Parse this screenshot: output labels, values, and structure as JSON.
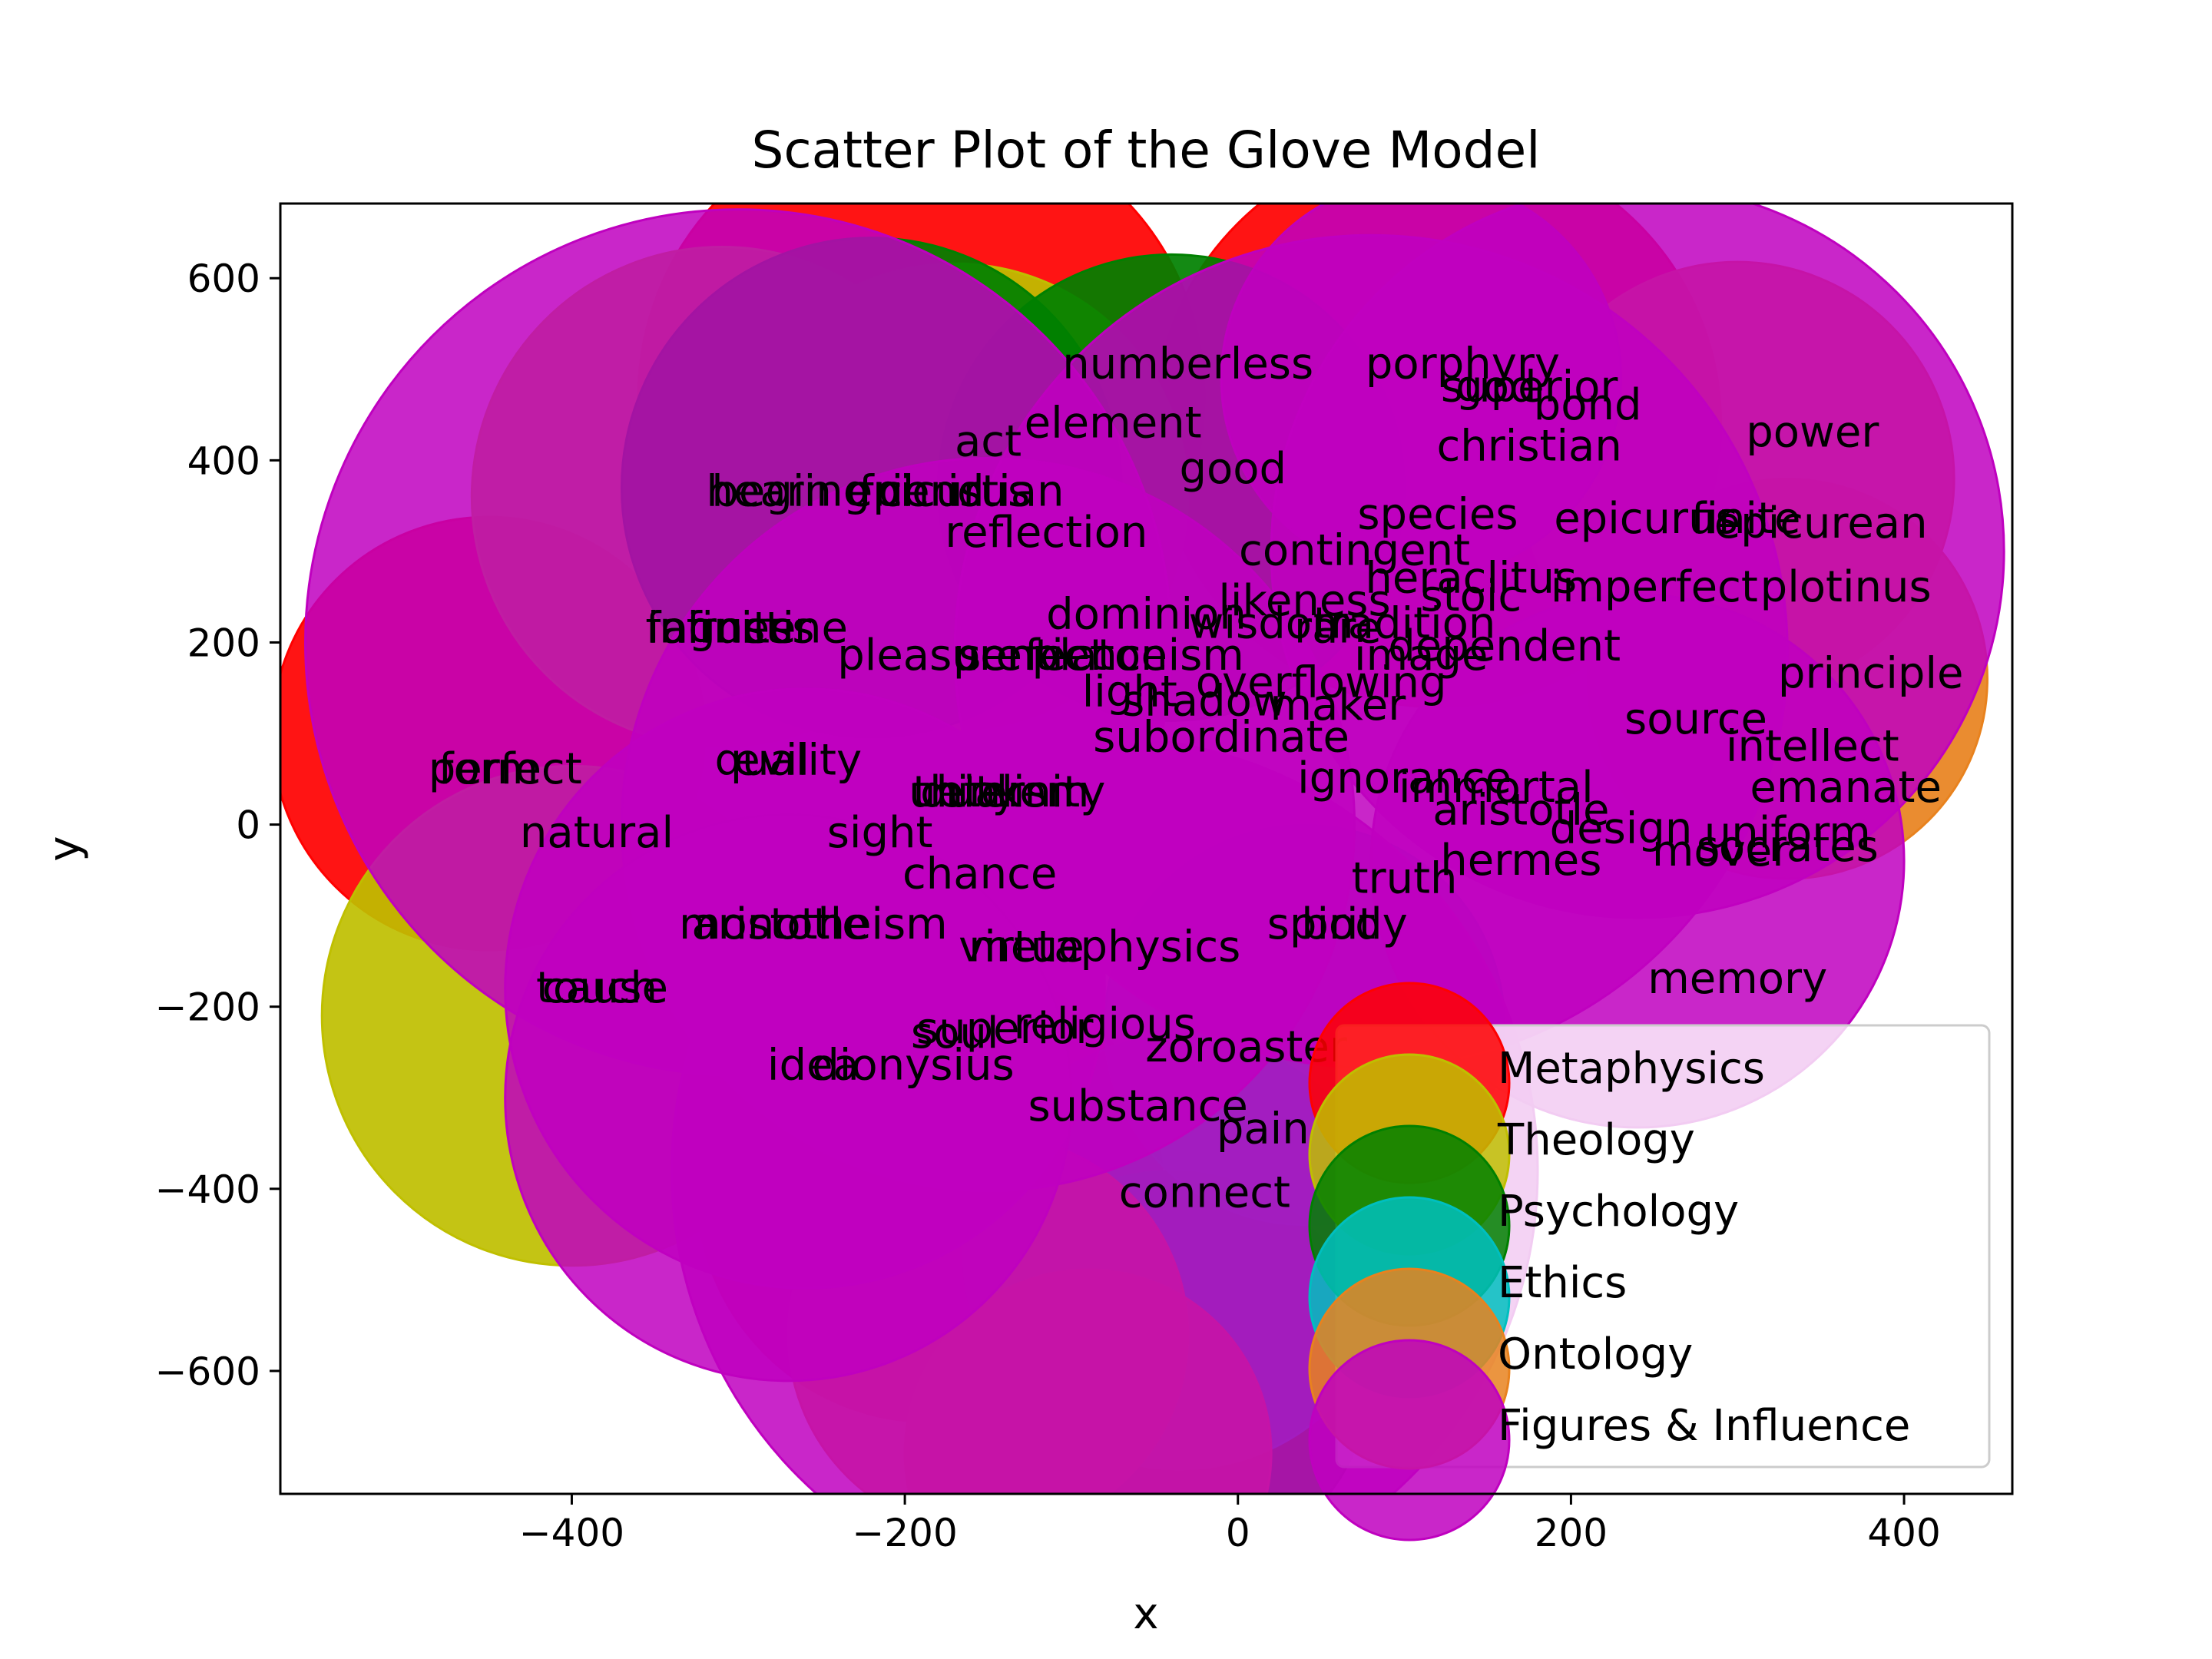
{
  "chart_data": {
    "type": "scatter",
    "title": "Scatter Plot of the Glove Model",
    "xlabel": "x",
    "ylabel": "y",
    "xlim": [
      -575,
      465
    ],
    "ylim": [
      -735,
      682
    ],
    "xticks": [
      -400,
      -200,
      0,
      200,
      400
    ],
    "xtick_labels": [
      "−400",
      "−200",
      "0",
      "200",
      "400"
    ],
    "yticks": [
      600,
      400,
      200,
      0,
      -200,
      -400,
      -600
    ],
    "ytick_labels": [
      "600",
      "400",
      "200",
      "0",
      "−200",
      "−400",
      "−600"
    ],
    "legend": {
      "placement": "lower-right"
    },
    "series": [
      {
        "name": "Metaphysics",
        "color": "#ff0000",
        "bubbles": [
          [
            -190,
            470,
            170
          ],
          [
            120,
            440,
            170
          ],
          [
            -450,
            100,
            130
          ],
          [
            -185,
            -400,
            140
          ]
        ]
      },
      {
        "name": "Theology",
        "color": "#bfbf00",
        "bubbles": [
          [
            -310,
            360,
            150
          ],
          [
            -400,
            -210,
            150
          ],
          [
            -170,
            360,
            140
          ]
        ]
      },
      {
        "name": "Psychology",
        "color": "#008000",
        "bubbles": [
          [
            -220,
            370,
            150
          ],
          [
            -40,
            370,
            140
          ],
          [
            -40,
            -600,
            120
          ]
        ]
      },
      {
        "name": "Ethics",
        "color": "#00bfbf",
        "bubbles": [
          [
            -35,
            -470,
            130
          ],
          [
            40,
            -220,
            120
          ]
        ]
      },
      {
        "name": "Ontology",
        "color": "#e8821e",
        "bubbles": [
          [
            300,
            380,
            130
          ],
          [
            330,
            160,
            120
          ],
          [
            -150,
            -560,
            120
          ],
          [
            -90,
            -690,
            110
          ]
        ]
      },
      {
        "name": "Figures & Influence",
        "color": "#bf00bf",
        "bubbles": [
          [
            -300,
            200,
            260
          ],
          [
            -80,
            -380,
            260
          ],
          [
            80,
            190,
            250
          ],
          [
            240,
            300,
            220
          ],
          [
            -260,
            -180,
            180
          ],
          [
            -150,
            0,
            220
          ],
          [
            240,
            -40,
            160
          ],
          [
            -270,
            -300,
            170
          ],
          [
            110,
            490,
            120
          ]
        ]
      }
    ],
    "words": [
      [
        "numberless",
        -30,
        490
      ],
      [
        "porphyry",
        135,
        490
      ],
      [
        "god",
        155,
        465
      ],
      [
        "superior",
        175,
        465
      ],
      [
        "bond",
        210,
        445
      ],
      [
        "power",
        345,
        415
      ],
      [
        "element",
        -75,
        425
      ],
      [
        "act",
        -150,
        405
      ],
      [
        "christian",
        175,
        400
      ],
      [
        "hearing",
        -270,
        350
      ],
      [
        "begin",
        -280,
        350
      ],
      [
        "friend",
        -190,
        350
      ],
      [
        "epicurus",
        -180,
        350
      ],
      [
        "christian",
        -160,
        350
      ],
      [
        "good",
        -3,
        375
      ],
      [
        "species",
        120,
        325
      ],
      [
        "epicurus",
        245,
        320
      ],
      [
        "finite",
        305,
        320
      ],
      [
        "epicurean",
        350,
        315
      ],
      [
        "reflection",
        -115,
        305
      ],
      [
        "contingent",
        70,
        285
      ],
      [
        "heraclitus",
        140,
        255
      ],
      [
        "imperfect",
        250,
        245
      ],
      [
        "plotinus",
        365,
        245
      ],
      [
        "stoic",
        140,
        235
      ],
      [
        "likeness",
        40,
        230
      ],
      [
        "dominion",
        -55,
        215
      ],
      [
        "tradition",
        100,
        205
      ],
      [
        "wisdom",
        20,
        205
      ],
      [
        "rare",
        60,
        200
      ],
      [
        "infinite",
        -310,
        200
      ],
      [
        "fairness",
        -305,
        200
      ],
      [
        "agustine",
        -290,
        200
      ],
      [
        "dependent",
        160,
        180
      ],
      [
        "pleasure",
        -185,
        170
      ],
      [
        "perfect",
        -125,
        170
      ],
      [
        "sentience",
        -105,
        170
      ],
      [
        "platonism",
        -60,
        170
      ],
      [
        "image",
        110,
        170
      ],
      [
        "overflowing",
        50,
        140
      ],
      [
        "light",
        -65,
        130
      ],
      [
        "shadow",
        -20,
        120
      ],
      [
        "maker",
        60,
        115
      ],
      [
        "principle",
        380,
        150
      ],
      [
        "source",
        275,
        100
      ],
      [
        "subordinate",
        -10,
        80
      ],
      [
        "intellect",
        345,
        70
      ],
      [
        "perfect",
        -440,
        45
      ],
      [
        "form",
        -450,
        45
      ],
      [
        "quality",
        -270,
        55
      ],
      [
        "evil",
        -280,
        55
      ],
      [
        "ignorance",
        100,
        35
      ],
      [
        "immortal",
        155,
        25
      ],
      [
        "emanate",
        365,
        25
      ],
      [
        "unity",
        -165,
        20
      ],
      [
        "thinker",
        -150,
        20
      ],
      [
        "dualism",
        -140,
        20
      ],
      [
        "eternity",
        -130,
        20
      ],
      [
        "aristotle",
        170,
        0
      ],
      [
        "design",
        230,
        -20
      ],
      [
        "uniform",
        330,
        -25
      ],
      [
        "natural",
        -385,
        -25
      ],
      [
        "mover",
        290,
        -45
      ],
      [
        "socrates",
        330,
        -40
      ],
      [
        "sight",
        -215,
        -25
      ],
      [
        "hermes",
        170,
        -55
      ],
      [
        "chance",
        -155,
        -70
      ],
      [
        "truth",
        100,
        -75
      ],
      [
        "aristotle",
        -275,
        -125
      ],
      [
        "monotheism",
        -255,
        -125
      ],
      [
        "metaphysics",
        -80,
        -150
      ],
      [
        "virtue",
        -130,
        -150
      ],
      [
        "spirit",
        50,
        -125
      ],
      [
        "body",
        70,
        -125
      ],
      [
        "memory",
        300,
        -185
      ],
      [
        "cause",
        -380,
        -195
      ],
      [
        "touch",
        -385,
        -195
      ],
      [
        "religious",
        -80,
        -235
      ],
      [
        "superior",
        -140,
        -240
      ],
      [
        "soul",
        -170,
        -245
      ],
      [
        "zoroaster",
        5,
        -260
      ],
      [
        "dionysius",
        -195,
        -280
      ],
      [
        "idea",
        -255,
        -280
      ],
      [
        "substance",
        -60,
        -325
      ],
      [
        "pain",
        15,
        -350
      ],
      [
        "connect",
        -20,
        -420
      ]
    ]
  },
  "legend_items": [
    {
      "label": "Metaphysics",
      "color": "#ff0000"
    },
    {
      "label": "Theology",
      "color": "#bfbf00"
    },
    {
      "label": "Psychology",
      "color": "#008000"
    },
    {
      "label": "Ethics",
      "color": "#00bfbf"
    },
    {
      "label": "Ontology",
      "color": "#e8821e"
    },
    {
      "label": "Figures & Influence",
      "color": "#bf00bf"
    }
  ]
}
